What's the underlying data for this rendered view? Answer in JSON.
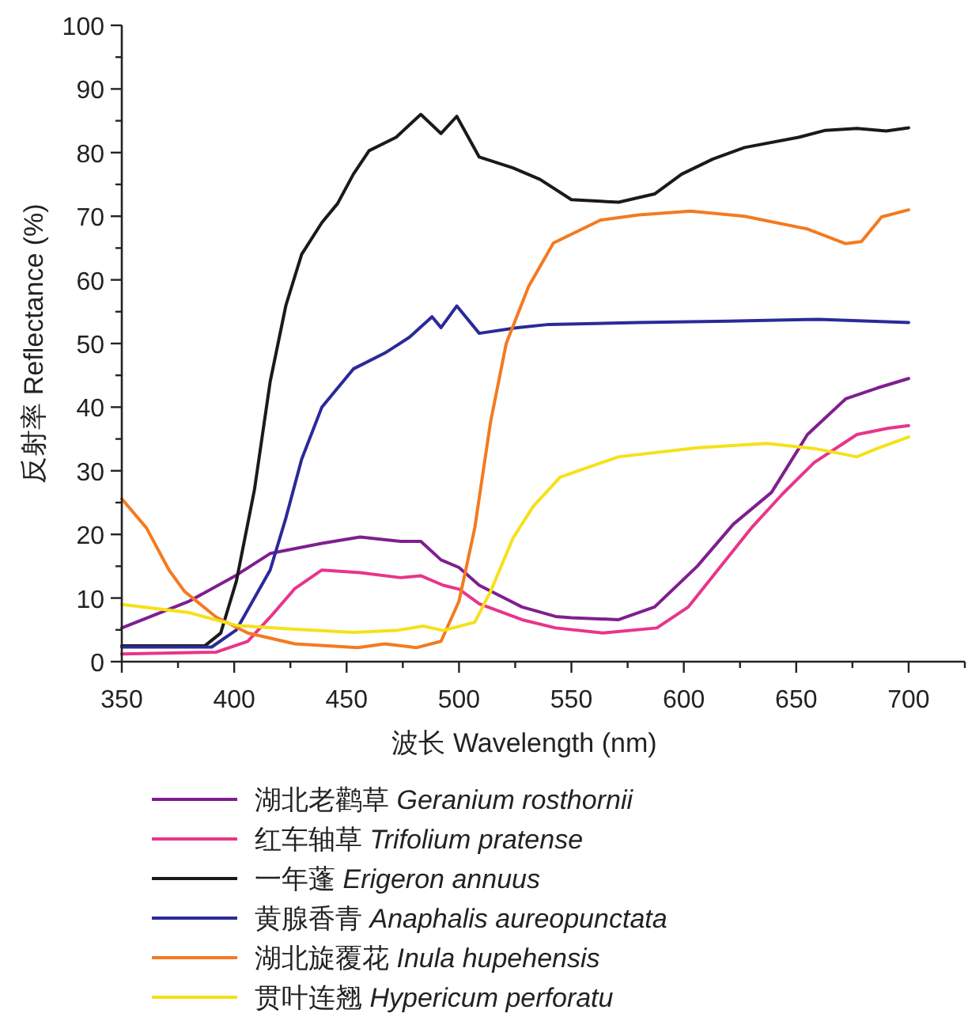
{
  "chart_data": {
    "type": "line",
    "xlabel": "波长  Wavelength (nm)",
    "ylabel": "反射率  Reflectance (%)",
    "xlim": [
      350,
      725
    ],
    "ylim": [
      0,
      100
    ],
    "xticks": [
      350,
      {
        "value": 375,
        "label": null
      },
      400,
      {
        "value": 425,
        "label": null
      },
      450,
      {
        "value": 475,
        "label": null
      },
      500,
      {
        "value": 525,
        "label": null
      },
      550,
      {
        "value": 575,
        "label": null
      },
      600,
      {
        "value": 625,
        "label": null
      },
      650,
      {
        "value": 675,
        "label": null
      },
      700,
      {
        "value": 725,
        "label": null
      }
    ],
    "yticks": [
      0,
      {
        "value": 5,
        "label": null
      },
      10,
      {
        "value": 15,
        "label": null
      },
      20,
      {
        "value": 25,
        "label": null
      },
      30,
      {
        "value": 35,
        "label": null
      },
      40,
      {
        "value": 45,
        "label": null
      },
      50,
      {
        "value": 55,
        "label": null
      },
      60,
      {
        "value": 65,
        "label": null
      },
      70,
      {
        "value": 75,
        "label": null
      },
      80,
      {
        "value": 85,
        "label": null
      },
      90,
      {
        "value": 95,
        "label": null
      },
      100
    ],
    "grid": false,
    "legend": "bottom",
    "marker": "none",
    "line_style": "solid",
    "series": [
      {
        "name": "湖北老鹳草  *Geranium rosthornii*",
        "color": "#7f1f8f",
        "x": [
          350,
          380,
          401,
          416,
          439,
          456,
          474,
          483,
          492,
          500,
          509,
          528,
          543,
          550,
          571,
          587,
          606,
          622,
          639,
          655,
          672,
          686,
          700
        ],
        "values": [
          5.3,
          9.5,
          13.6,
          17,
          18.6,
          19.6,
          18.9,
          18.9,
          16,
          14.8,
          12,
          8.6,
          7.1,
          6.9,
          6.6,
          8.6,
          15,
          21.6,
          26.6,
          35.7,
          41.3,
          43,
          44.5
        ]
      },
      {
        "name": "红车轴草  *Trifolium pratense*",
        "color": "#e8358a",
        "x": [
          350,
          392,
          406,
          416,
          427,
          439,
          456,
          474,
          483,
          493,
          500,
          509,
          528,
          543,
          564,
          588,
          602,
          616,
          630,
          644,
          658,
          677,
          691,
          700
        ],
        "values": [
          1.2,
          1.5,
          3.2,
          7,
          11.5,
          14.4,
          14,
          13.2,
          13.5,
          12,
          11.4,
          9.1,
          6.6,
          5.3,
          4.5,
          5.3,
          8.6,
          14.8,
          21,
          26.4,
          31.3,
          35.7,
          36.7,
          37.1
        ]
      },
      {
        "name": "一年蓬  *Erigeron annuus*",
        "color": "#1a1a1a",
        "x": [
          350,
          387,
          394,
          401,
          409,
          416,
          423,
          430,
          439,
          446,
          453,
          460,
          472,
          483,
          492,
          499,
          509,
          524,
          536,
          550,
          571,
          587,
          599,
          613,
          627,
          651,
          663,
          677,
          690,
          700
        ],
        "values": [
          2.5,
          2.5,
          4.5,
          12.7,
          27,
          44,
          56,
          64,
          69,
          72,
          76.6,
          80.3,
          82.4,
          86,
          83,
          85.7,
          79.3,
          77.6,
          75.8,
          72.6,
          72.2,
          73.5,
          76.6,
          79,
          80.8,
          82.4,
          83.5,
          83.8,
          83.4,
          83.9
        ]
      },
      {
        "name": "黄腺香青  *Anaphalis aureopunctata*",
        "color": "#2a2a9a",
        "x": [
          350,
          390,
          401,
          416,
          423,
          430,
          439,
          453,
          467,
          478,
          488,
          492,
          499,
          509,
          526,
          540,
          580,
          620,
          660,
          700
        ],
        "values": [
          2.3,
          2.3,
          5,
          14.4,
          22.6,
          31.8,
          40,
          46,
          48.5,
          51,
          54.2,
          52.5,
          55.9,
          51.6,
          52.5,
          53,
          53.3,
          53.5,
          53.8,
          53.3
        ]
      },
      {
        "name": "湖北旋覆花  *Inula hupehensis*",
        "color": "#f47a20",
        "x": [
          350,
          361,
          371,
          378,
          392,
          406,
          427,
          455,
          467,
          481,
          492,
          500,
          507,
          514,
          521,
          531,
          542,
          563,
          580,
          603,
          627,
          655,
          672,
          679,
          688,
          700
        ],
        "values": [
          25.6,
          21,
          14.4,
          11,
          7,
          4.5,
          2.8,
          2.2,
          2.8,
          2.2,
          3.2,
          9.5,
          21,
          37.6,
          50,
          59,
          65.8,
          69.4,
          70.2,
          70.8,
          70,
          68,
          65.7,
          66,
          69.9,
          71
        ]
      },
      {
        "name": "贯叶连翘  *Hypericum perforatu*",
        "color": "#f5e11a",
        "x": [
          350,
          380,
          401,
          427,
          453,
          472,
          484,
          493,
          507,
          514,
          524,
          533,
          545,
          571,
          606,
          637,
          658,
          677,
          686,
          700
        ],
        "values": [
          9,
          7.7,
          5.7,
          5.1,
          4.6,
          4.9,
          5.6,
          4.9,
          6.2,
          11,
          19.4,
          24.4,
          29,
          32.2,
          33.6,
          34.3,
          33.5,
          32.2,
          33.5,
          35.3
        ]
      }
    ]
  }
}
